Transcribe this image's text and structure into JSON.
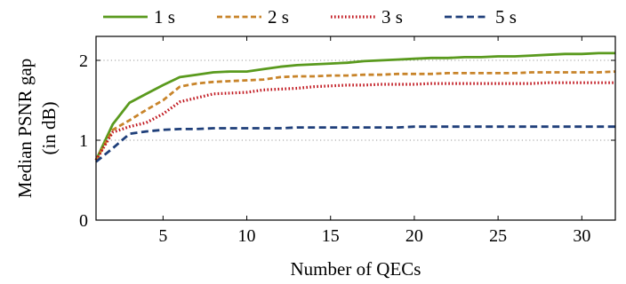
{
  "chart_data": {
    "type": "line",
    "xlabel": "Number of QECs",
    "ylabel_lines": [
      "Median PSNR gap",
      "(in dB)"
    ],
    "xlim": [
      1,
      32
    ],
    "ylim": [
      0,
      2.3
    ],
    "xticks": [
      5,
      10,
      15,
      20,
      25,
      30
    ],
    "yticks": [
      0,
      1,
      2
    ],
    "grid": "horizontal-dotted",
    "legend": "top, horizontal",
    "x": [
      1,
      2,
      3,
      4,
      5,
      6,
      7,
      8,
      9,
      10,
      11,
      12,
      13,
      14,
      15,
      16,
      17,
      18,
      19,
      20,
      21,
      22,
      23,
      24,
      25,
      26,
      27,
      28,
      29,
      30,
      31,
      32
    ],
    "series": [
      {
        "name": "1 s",
        "color": "#5a9a1e",
        "dash": "solid",
        "values": [
          0.75,
          1.2,
          1.47,
          1.58,
          1.69,
          1.79,
          1.82,
          1.85,
          1.86,
          1.86,
          1.89,
          1.92,
          1.94,
          1.95,
          1.96,
          1.97,
          1.99,
          2.0,
          2.01,
          2.02,
          2.03,
          2.03,
          2.04,
          2.04,
          2.05,
          2.05,
          2.06,
          2.07,
          2.08,
          2.08,
          2.09,
          2.09
        ]
      },
      {
        "name": "2 s",
        "color": "#c8842a",
        "dash": "dashed",
        "values": [
          0.75,
          1.13,
          1.25,
          1.38,
          1.5,
          1.67,
          1.71,
          1.73,
          1.74,
          1.75,
          1.76,
          1.79,
          1.8,
          1.8,
          1.81,
          1.81,
          1.82,
          1.82,
          1.83,
          1.83,
          1.83,
          1.84,
          1.84,
          1.84,
          1.84,
          1.84,
          1.85,
          1.85,
          1.85,
          1.85,
          1.85,
          1.86
        ]
      },
      {
        "name": "3 s",
        "color": "#c0161e",
        "dash": "dotted",
        "values": [
          0.75,
          1.1,
          1.17,
          1.22,
          1.33,
          1.48,
          1.53,
          1.58,
          1.59,
          1.6,
          1.63,
          1.64,
          1.65,
          1.67,
          1.68,
          1.69,
          1.69,
          1.7,
          1.7,
          1.7,
          1.71,
          1.71,
          1.71,
          1.71,
          1.71,
          1.71,
          1.71,
          1.72,
          1.72,
          1.72,
          1.72,
          1.72
        ]
      },
      {
        "name": "5 s",
        "color": "#1f3f7a",
        "dash": "dashed",
        "values": [
          0.73,
          0.9,
          1.08,
          1.11,
          1.13,
          1.14,
          1.14,
          1.15,
          1.15,
          1.15,
          1.15,
          1.15,
          1.16,
          1.16,
          1.16,
          1.16,
          1.16,
          1.16,
          1.16,
          1.17,
          1.17,
          1.17,
          1.17,
          1.17,
          1.17,
          1.17,
          1.17,
          1.17,
          1.17,
          1.17,
          1.17,
          1.17
        ]
      }
    ]
  }
}
